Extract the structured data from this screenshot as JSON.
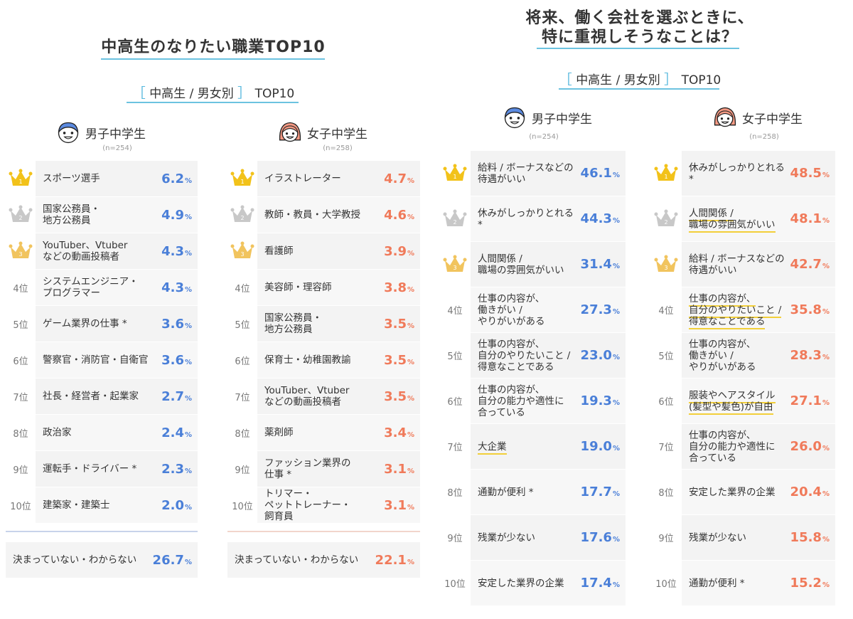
{
  "left": {
    "title": "中高生のなりたい職業TOP10",
    "subtitle_bracket_open": "［",
    "subtitle_text": "中高生 / 男女別",
    "subtitle_bracket_close": "］",
    "subtitle_suffix": "TOP10",
    "boys": {
      "label": "男子中学生",
      "n": "(n=254)",
      "rows": [
        {
          "rank": "1",
          "label": "スポーツ選手",
          "value": "6.2"
        },
        {
          "rank": "2",
          "label": "国家公務員・\n地方公務員",
          "value": "4.9"
        },
        {
          "rank": "3",
          "label": "YouTuber、Vtuber\nなどの動画投稿者",
          "value": "4.3"
        },
        {
          "rank": "4位",
          "label": "システムエンジニア・\nプログラマー",
          "value": "4.3"
        },
        {
          "rank": "5位",
          "label": "ゲーム業界の仕事 *",
          "value": "3.6"
        },
        {
          "rank": "6位",
          "label": "警察官・消防官・自衛官",
          "value": "3.6"
        },
        {
          "rank": "7位",
          "label": "社長・経営者・起業家",
          "value": "2.7"
        },
        {
          "rank": "8位",
          "label": "政治家",
          "value": "2.4"
        },
        {
          "rank": "9位",
          "label": "運転手・ドライバー *",
          "value": "2.3"
        },
        {
          "rank": "10位",
          "label": "建築家・建築士",
          "value": "2.0"
        }
      ],
      "undecided_label": "決まっていない・わからない",
      "undecided_value": "26.7"
    },
    "girls": {
      "label": "女子中学生",
      "n": "(n=258)",
      "rows": [
        {
          "rank": "1",
          "label": "イラストレーター",
          "value": "4.7"
        },
        {
          "rank": "2",
          "label": "教師・教員・大学教授",
          "value": "4.6"
        },
        {
          "rank": "3",
          "label": "看護師",
          "value": "3.9"
        },
        {
          "rank": "4位",
          "label": "美容師・理容師",
          "value": "3.8"
        },
        {
          "rank": "5位",
          "label": "国家公務員・\n地方公務員",
          "value": "3.5"
        },
        {
          "rank": "6位",
          "label": "保育士・幼稚園教諭",
          "value": "3.5"
        },
        {
          "rank": "7位",
          "label": "YouTuber、Vtuber\nなどの動画投稿者",
          "value": "3.5"
        },
        {
          "rank": "8位",
          "label": "薬剤師",
          "value": "3.4"
        },
        {
          "rank": "9位",
          "label": "ファッション業界の\n仕事 *",
          "value": "3.1"
        },
        {
          "rank": "10位",
          "label": "トリマー・\nペットトレーナー・\n飼育員",
          "value": "3.1"
        }
      ],
      "undecided_label": "決まっていない・わからない",
      "undecided_value": "22.1"
    }
  },
  "right": {
    "title_line1": "将来、働く会社を選ぶときに、",
    "title_line2": "特に重視しそうなことは？",
    "subtitle_bracket_open": "［",
    "subtitle_text": "中高生 / 男女別",
    "subtitle_bracket_close": "］",
    "subtitle_suffix": "TOP10",
    "boys": {
      "label": "男子中学生",
      "n": "(n=254)",
      "rows": [
        {
          "rank": "1",
          "label": "給料 / ボーナスなどの\n待遇がいい",
          "value": "46.1"
        },
        {
          "rank": "2",
          "label": "休みがしっかりとれる *",
          "value": "44.3"
        },
        {
          "rank": "3",
          "label": "人間関係 /\n職場の雰囲気がいい",
          "value": "31.4"
        },
        {
          "rank": "4位",
          "label": "仕事の内容が、\n働きがい /\nやりがいがある",
          "value": "27.3"
        },
        {
          "rank": "5位",
          "label": "仕事の内容が、\n自分のやりたいこと /\n得意なことである",
          "value": "23.0"
        },
        {
          "rank": "6位",
          "label": "仕事の内容が、\n自分の能力や適性に\n合っている",
          "value": "19.3"
        },
        {
          "rank": "7位",
          "label": "大企業",
          "value": "19.0",
          "underline": true
        },
        {
          "rank": "8位",
          "label": "通勤が便利 *",
          "value": "17.7"
        },
        {
          "rank": "9位",
          "label": "残業が少ない",
          "value": "17.6"
        },
        {
          "rank": "10位",
          "label": "安定した業界の企業",
          "value": "17.4"
        }
      ]
    },
    "girls": {
      "label": "女子中学生",
      "n": "(n=258)",
      "rows": [
        {
          "rank": "1",
          "label": "休みがしっかりとれる *",
          "value": "48.5"
        },
        {
          "rank": "2",
          "label": "人間関係 /\n職場の雰囲気がいい",
          "value": "48.1",
          "underline": true
        },
        {
          "rank": "3",
          "label": "給料 / ボーナスなどの\n待遇がいい",
          "value": "42.7"
        },
        {
          "rank": "4位",
          "label": "仕事の内容が、\n自分のやりたいこと /\n得意なことである",
          "value": "35.8",
          "underline": true
        },
        {
          "rank": "5位",
          "label": "仕事の内容が、\n働きがい /\nやりがいがある",
          "value": "28.3"
        },
        {
          "rank": "6位",
          "label": "服装やヘアスタイル\n(髪型や髪色)が自由",
          "value": "27.1",
          "underline": true
        },
        {
          "rank": "7位",
          "label": "仕事の内容が、\n自分の能力や適性に\n合っている",
          "value": "26.0"
        },
        {
          "rank": "8位",
          "label": "安定した業界の企業",
          "value": "20.4"
        },
        {
          "rank": "9位",
          "label": "残業が少ない",
          "value": "15.8"
        },
        {
          "rank": "10位",
          "label": "通勤が便利 *",
          "value": "15.2"
        }
      ]
    }
  },
  "pct_symbol": "%",
  "colors": {
    "boys": "#4a7fd8",
    "girls": "#f07a5a",
    "gold": "#f2c21a",
    "silver": "#c8c8c8",
    "bronze": "#f1c45e",
    "accent": "#6cc3e0"
  }
}
